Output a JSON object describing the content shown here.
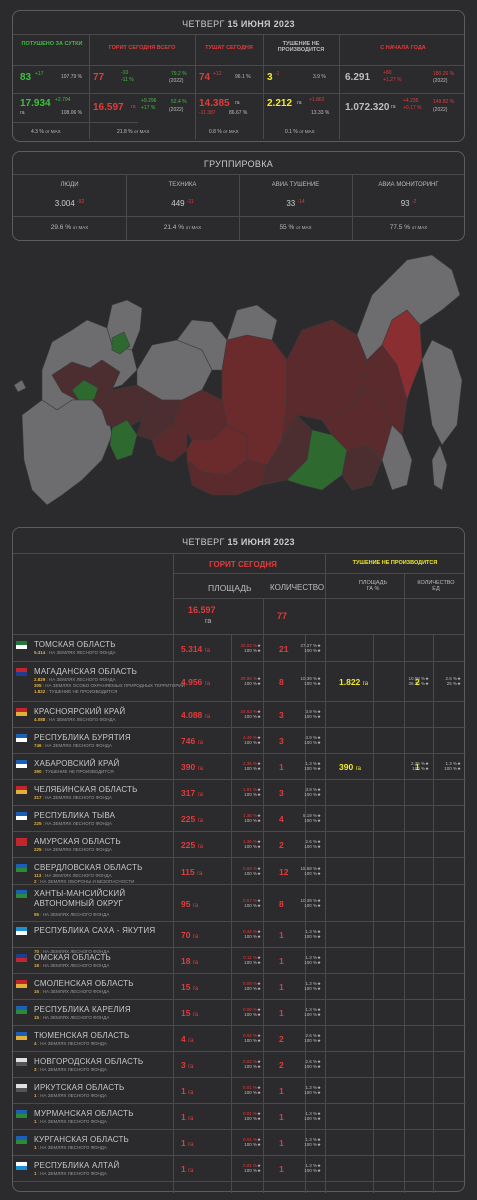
{
  "summary": {
    "date_prefix": "ЧЕТВЕРГ",
    "date": "15 ИЮНЯ 2023",
    "headers": [
      "ПОТУШЕНО ЗА СУТКИ",
      "ГОРИТ СЕГОДНЯ ВСЕГО",
      "ТУШАТ СЕГОДНЯ",
      "ТУШЕНИЕ НЕ ПРОИЗВОДИТСЯ",
      "С НАЧАЛА ГОДА"
    ],
    "col1": {
      "count": "83",
      "count_delta": "+17",
      "count_pct": "107.79 %",
      "area": "17.934",
      "area_unit": "га",
      "area_delta": "+2.794",
      "area_pct": "108.06 %",
      "max_pct": "4.3 %",
      "max_label": "от MAX"
    },
    "col2": {
      "count": "77",
      "count_delta": "-10",
      "count_pct2": "-11 %",
      "count_pct": "79.2 %",
      "count_year": "(2022)",
      "area": "16.597",
      "area_unit": "га",
      "area_delta": "+9.296",
      "area_pct2": "+17 %",
      "area_pct": "52.4 %",
      "area_year": "(2022)",
      "max_pct": "21.8 %",
      "max_label": "от MAX"
    },
    "col3": {
      "count": "74",
      "count_delta": "+12",
      "count_pct": "96.1 %",
      "area": "14.385",
      "area_unit": "га",
      "area_delta": "-11.387",
      "area_pct": "86.67 %",
      "max_pct": "0.8 %",
      "max_label": "от MAX"
    },
    "col4": {
      "count": "3",
      "count_delta": "-1",
      "count_pct": "3.9 %",
      "area": "2.212",
      "area_unit": "га",
      "area_delta": "+1.862",
      "area_pct": "13.33 %",
      "max_pct": "0.1 %",
      "max_label": "от MAX"
    },
    "col5": {
      "count": "6.291",
      "count_delta": "+80",
      "count_pct2": "+1,27 %",
      "count_pct": "180.26 %",
      "count_year": "(2022)",
      "area": "1.072.320",
      "area_unit": "га",
      "area_delta": "+4.235",
      "area_pct2": "+0,17 %",
      "area_pct": "149.82 %",
      "area_year": "(2022)"
    }
  },
  "grouping": {
    "title": "ГРУППИРОВКА",
    "headers": [
      "ЛЮДИ",
      "ТЕХНИКА",
      "АВИА ТУШЕНИЕ",
      "АВИА МОНИТОРИНГ"
    ],
    "values": [
      "3.004",
      "449",
      "33",
      "93"
    ],
    "deltas": [
      "-92",
      "-11",
      "-14",
      "-2"
    ],
    "max": [
      "29.6 %",
      "21.4 %",
      "55 %",
      "77.5 %"
    ],
    "max_label": "от MAX"
  },
  "detail": {
    "date_prefix": "ЧЕТВЕРГ",
    "date": "15 ИЮНЯ 2023",
    "burning_header": "ГОРИТ СЕГОДНЯ",
    "not_header": "ТУШЕНИЕ НЕ ПРОИЗВОДИТСЯ",
    "area_header": "ПЛОЩАДЬ",
    "count_header": "КОЛИЧЕСТВО",
    "area_small": "ПЛОЩАДЬ",
    "area_small_unit": "ГА %",
    "count_small": "КОЛИЧЕСТВО",
    "count_small_unit": "ЕД",
    "total_area": "16.597",
    "total_unit": "га",
    "total_count": "77"
  },
  "regions": [
    {
      "name": "ТОМСКАЯ ОБЛАСТЬ",
      "subs": [
        [
          "5.314",
          "НА ЗЕМЛЯХ ЛЕСНОГО ФОНДА"
        ]
      ],
      "area": "5.314",
      "p1": "32.02 %",
      "p2": "100 %",
      "count": "21",
      "c1": "27.27 %",
      "c2": "100 %",
      "flag": [
        "#1f7a3a",
        "#ffffff"
      ]
    },
    {
      "name": "МАГАДАНСКАЯ ОБЛАСТЬ",
      "subs": [
        [
          "2.829",
          "НА ЗЕМЛЯХ ЛЕСНОГО ФОНДА"
        ],
        [
          "305",
          "НА ЗЕМЛЯХ ОСОБО ОХРАНЯЕМЫХ ПРИРОДНЫХ ТЕРРИТОРИЙ"
        ],
        [
          "1.822",
          "ТУШЕНИЕ НЕ ПРОИЗВОДИТСЯ"
        ]
      ],
      "area": "4.956",
      "p1": "29.86 %",
      "p2": "100 %",
      "count": "8",
      "c1": "10.39 %",
      "c2": "100 %",
      "n_area": "1.822",
      "n_unit": "га",
      "np1": "10.98 %",
      "np2": "36.76 %",
      "n_count": "2",
      "nc1": "2.6 %",
      "nc2": "25 %",
      "flag": [
        "#c0262c",
        "#1d3d8f"
      ]
    },
    {
      "name": "КРАСНОЯРСКИЙ КРАЙ",
      "subs": [
        [
          "4.088",
          "НА ЗЕМЛЯХ ЛЕСНОГО ФОНДА"
        ]
      ],
      "area": "4.088",
      "p1": "24.63 %",
      "p2": "100 %",
      "count": "3",
      "c1": "3.9 %",
      "c2": "100 %",
      "flag": [
        "#c0262c",
        "#e0b03a"
      ]
    },
    {
      "name": "РЕСПУБЛИКА БУРЯТИЯ",
      "subs": [
        [
          "746",
          "НА ЗЕМЛЯХ ЛЕСНОГО ФОНДА"
        ]
      ],
      "area": "746",
      "p1": "4.49 %",
      "p2": "100 %",
      "count": "3",
      "c1": "3.9 %",
      "c2": "100 %",
      "flag": [
        "#1d5fb4",
        "#ffffff"
      ]
    },
    {
      "name": "ХАБАРОВСКИЙ КРАЙ",
      "subs": [
        [
          "390",
          "ТУШЕНИЕ НЕ ПРОИЗВОДИТСЯ"
        ]
      ],
      "area": "390",
      "p1": "2.35 %",
      "p2": "100 %",
      "count": "1",
      "c1": "1.3 %",
      "c2": "100 %",
      "n_area": "390",
      "n_unit": "га",
      "np1": "2.35 %",
      "np2": "100 %",
      "n_count": "1",
      "nc1": "1.3 %",
      "nc2": "100 %",
      "flag": [
        "#1d5fb4",
        "#ffffff"
      ]
    },
    {
      "name": "ЧЕЛЯБИНСКАЯ ОБЛАСТЬ",
      "subs": [
        [
          "317",
          "НА ЗЕМЛЯХ ЛЕСНОГО ФОНДА"
        ]
      ],
      "area": "317",
      "p1": "1.91 %",
      "p2": "100 %",
      "count": "3",
      "c1": "3.9 %",
      "c2": "100 %",
      "flag": [
        "#c0262c",
        "#e0b03a"
      ]
    },
    {
      "name": "РЕСПУБЛИКА ТЫВА",
      "subs": [
        [
          "225",
          "НА ЗЕМЛЯХ ЛЕСНОГО ФОНДА"
        ]
      ],
      "area": "225",
      "p1": "1.36 %",
      "p2": "100 %",
      "count": "4",
      "c1": "5.19 %",
      "c2": "100 %",
      "flag": [
        "#1d5fb4",
        "#ffffff"
      ]
    },
    {
      "name": "АМУРСКАЯ ОБЛАСТЬ",
      "subs": [
        [
          "225",
          "НА ЗЕМЛЯХ ЛЕСНОГО ФОНДА"
        ]
      ],
      "area": "225",
      "p1": "1.36 %",
      "p2": "100 %",
      "count": "2",
      "c1": "2.6 %",
      "c2": "100 %",
      "flag": [
        "#c0262c",
        "#c0262c"
      ]
    },
    {
      "name": "СВЕРДЛОВСКАЯ ОБЛАСТЬ",
      "subs": [
        [
          "113",
          "НА ЗЕМЛЯХ ЛЕСНОГО ФОНДА"
        ],
        [
          "2",
          "НА ЗЕМЛЯХ ОБОРОНЫ И БЕЗОПАСНОСТИ"
        ]
      ],
      "area": "115",
      "p1": "0.69 %",
      "p2": "100 %",
      "count": "12",
      "c1": "15.58 %",
      "c2": "100 %",
      "flag": [
        "#1d5fb4",
        "#2a8a3a"
      ]
    },
    {
      "name": "ХАНТЫ-МАНСИЙСКИЙ АВТОНОМНЫЙ ОКРУГ",
      "subs": [
        [
          "95",
          "НА ЗЕМЛЯХ ЛЕСНОГО ФОНДА"
        ]
      ],
      "area": "95",
      "p1": "0.57 %",
      "p2": "100 %",
      "count": "8",
      "c1": "10.39 %",
      "c2": "100 %",
      "flag": [
        "#1d5fb4",
        "#2a8a3a"
      ]
    },
    {
      "name": "РЕСПУБЛИКА САХА - ЯКУТИЯ",
      "subs": [
        [
          "70",
          "НА ЗЕМЛЯХ ЛЕСНОГО ФОНДА"
        ]
      ],
      "area": "70",
      "p1": "0.42 %",
      "p2": "100 %",
      "count": "1",
      "c1": "1.3 %",
      "c2": "100 %",
      "flag": [
        "#1d8fd4",
        "#ffffff"
      ]
    },
    {
      "name": "ОМСКАЯ ОБЛАСТЬ",
      "subs": [
        [
          "18",
          "НА ЗЕМЛЯХ ЛЕСНОГО ФОНДА"
        ]
      ],
      "area": "18",
      "p1": "0.11 %",
      "p2": "100 %",
      "count": "1",
      "c1": "1.3 %",
      "c2": "100 %",
      "flag": [
        "#1d3d8f",
        "#c0262c"
      ]
    },
    {
      "name": "СМОЛЕНСКАЯ ОБЛАСТЬ",
      "subs": [
        [
          "15",
          "НА ЗЕМЛЯХ ЛЕСНОГО ФОНДА"
        ]
      ],
      "area": "15",
      "p1": "0.09 %",
      "p2": "100 %",
      "count": "1",
      "c1": "1.3 %",
      "c2": "100 %",
      "flag": [
        "#c0262c",
        "#e0b03a"
      ]
    },
    {
      "name": "РЕСПУБЛИКА КАРЕЛИЯ",
      "subs": [
        [
          "15",
          "НА ЗЕМЛЯХ ЛЕСНОГО ФОНДА"
        ]
      ],
      "area": "15",
      "p1": "0.09 %",
      "p2": "100 %",
      "count": "1",
      "c1": "1.3 %",
      "c2": "100 %",
      "flag": [
        "#1d5fb4",
        "#2a8a3a"
      ]
    },
    {
      "name": "ТЮМЕНСКАЯ ОБЛАСТЬ",
      "subs": [
        [
          "4",
          "НА ЗЕМЛЯХ ЛЕСНОГО ФОНДА"
        ]
      ],
      "area": "4",
      "p1": "0.02 %",
      "p2": "100 %",
      "count": "2",
      "c1": "2.6 %",
      "c2": "100 %",
      "flag": [
        "#1d5fb4",
        "#e0b03a"
      ]
    },
    {
      "name": "НОВГОРОДСКАЯ ОБЛАСТЬ",
      "subs": [
        [
          "3",
          "НА ЗЕМЛЯХ ЛЕСНОГО ФОНДА"
        ]
      ],
      "area": "3",
      "p1": "0.02 %",
      "p2": "100 %",
      "count": "2",
      "c1": "2.6 %",
      "c2": "100 %",
      "flag": [
        "#e0e0e0",
        "#555555"
      ]
    },
    {
      "name": "ИРКУТСКАЯ ОБЛАСТЬ",
      "subs": [
        [
          "1",
          "НА ЗЕМЛЯХ ЛЕСНОГО ФОНДА"
        ]
      ],
      "area": "1",
      "p1": "0.01 %",
      "p2": "100 %",
      "count": "1",
      "c1": "1.3 %",
      "c2": "100 %",
      "flag": [
        "#e0e0e0",
        "#555555"
      ]
    },
    {
      "name": "МУРМАНСКАЯ ОБЛАСТЬ",
      "subs": [
        [
          "1",
          "НА ЗЕМЛЯХ ЛЕСНОГО ФОНДА"
        ]
      ],
      "area": "1",
      "p1": "0.01 %",
      "p2": "100 %",
      "count": "1",
      "c1": "1.3 %",
      "c2": "100 %",
      "flag": [
        "#1d5fb4",
        "#2a8a3a"
      ]
    },
    {
      "name": "КУРГАНСКАЯ ОБЛАСТЬ",
      "subs": [
        [
          "1",
          "НА ЗЕМЛЯХ ЛЕСНОГО ФОНДА"
        ]
      ],
      "area": "1",
      "p1": "0.01 %",
      "p2": "100 %",
      "count": "1",
      "c1": "1.3 %",
      "c2": "100 %",
      "flag": [
        "#1d5fb4",
        "#2a8a3a"
      ]
    },
    {
      "name": "РЕСПУБЛИКА АЛТАЙ",
      "subs": [
        [
          "1",
          "НА ЗЕМЛЯХ ЛЕСНОГО ФОНДА"
        ]
      ],
      "area": "1",
      "p1": "0.01 %",
      "p2": "100 %",
      "count": "1",
      "c1": "1.3 %",
      "c2": "100 %",
      "flag": [
        "#ffffff",
        "#1d8fd4"
      ]
    }
  ],
  "map": {
    "colors": {
      "burning": "#6b2a2c",
      "bright": "#8a2e31",
      "extinguished": "#2e6a30",
      "none": "#6d6d70",
      "border": "#3a3a3c"
    }
  }
}
